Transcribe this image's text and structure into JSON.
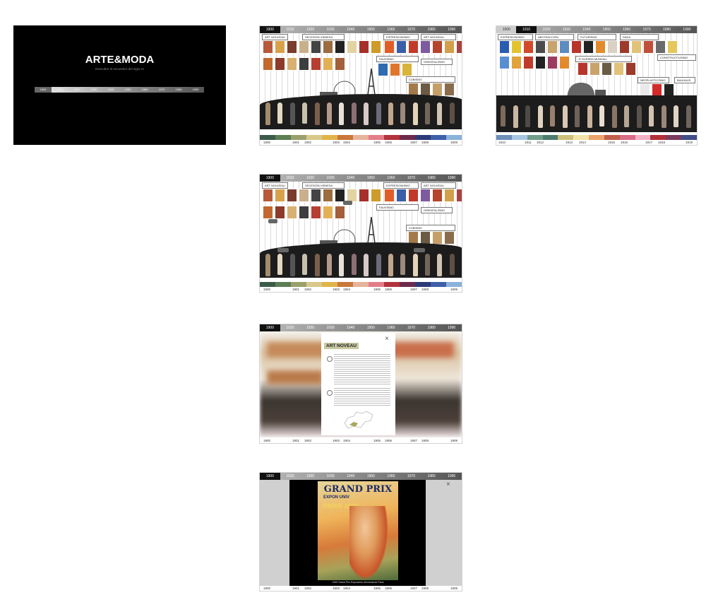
{
  "title_screen": {
    "title": "ARTE&MODA",
    "subtitle": "Descubre el encuentro del siglo xx",
    "decades": [
      "1900",
      "1910",
      "1920",
      "1930",
      "1940",
      "1950",
      "1960",
      "1970",
      "1980",
      "1990"
    ]
  },
  "decades": [
    "1900",
    "1910",
    "1920",
    "1930",
    "1940",
    "1950",
    "1960",
    "1970",
    "1980",
    "1990"
  ],
  "years_1900": [
    "1900",
    "1901",
    "1902",
    "1903",
    "1904",
    "1905",
    "1906",
    "1907",
    "1908",
    "1909"
  ],
  "years_1910": [
    "1910",
    "1911",
    "1912",
    "1913",
    "1914",
    "1915",
    "1916",
    "1917",
    "1918",
    "1919"
  ],
  "movements_1900": {
    "art_noveau": "ART NOUVEAU",
    "secesion": "SECESIÓN VIENESA",
    "expresionismo": "EXPRESIONISMO",
    "art_nouveau_2": "ART NOUVEAU",
    "fauvismo": "FAUVISMO",
    "orientalismo": "ORIENTALISMO",
    "cubismo": "CUBISMO"
  },
  "movements_1910": {
    "expresionismo": "EXPRESIONISMO",
    "abstraccion": "ABSTRACCIÓN",
    "futurismo": "FUTURISMO",
    "dada": "DADA",
    "guerra": "1ª GUERRA MUNDIAL",
    "constructivismo": "CONSTRUCTIVISMO",
    "neoplasticismo": "NEOPLASTICISMO",
    "bauhaus": "BAUHAUS"
  },
  "modal": {
    "title": "ART NOVEAU"
  },
  "poster": {
    "line1": "GRAND PRIX",
    "line2": "EXPON UNIV",
    "line3": "PARIS 1900",
    "caption": "1900 Grand Prix Exposición Universal de París"
  },
  "colors": {
    "bar_1900": [
      "#3b5b4a",
      "#5d7f54",
      "#9aa06b",
      "#d8c88a",
      "#e0b44a",
      "#c9783b",
      "#e6b39b",
      "#e47d8a",
      "#b2343c",
      "#6e2a4c",
      "#2d3a78",
      "#3d60a8",
      "#8ab3d9"
    ],
    "bar_1910": [
      "#6d8fb8",
      "#a7c6e3",
      "#6f9d89",
      "#4d7c6f",
      "#cdbf7a",
      "#f1e3a8",
      "#e9a36a",
      "#c15f4c",
      "#d96b86",
      "#f2b0c5",
      "#b33136",
      "#7c3b5f",
      "#3f4d89"
    ]
  }
}
